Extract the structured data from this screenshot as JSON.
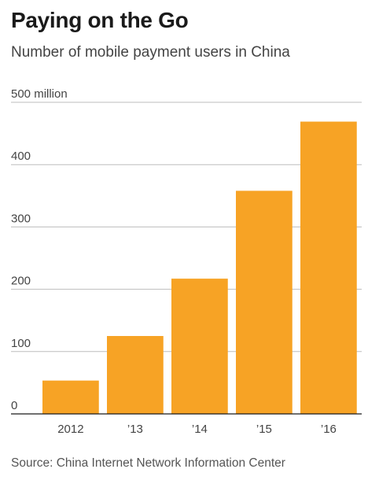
{
  "header": {
    "title": "Paying on the Go",
    "subtitle": "Number of mobile payment users in China"
  },
  "footer": {
    "source": "Source: China Internet Network Information Center"
  },
  "colors": {
    "bar": "#f7a325",
    "grid": "#bdbdbd",
    "baseline": "#1a1a1a"
  },
  "chart_data": {
    "type": "bar",
    "title": "Paying on the Go",
    "subtitle": "Number of mobile payment users in China",
    "categories": [
      "2012",
      "’13",
      "’14",
      "’15",
      "’16"
    ],
    "values": [
      53.5,
      125,
      217,
      358,
      469
    ],
    "ylim": [
      0,
      500
    ],
    "yticks": [
      0,
      100,
      200,
      300,
      400,
      500
    ],
    "ytick_labels": [
      "0",
      "100",
      "200",
      "300",
      "400",
      "500 million"
    ],
    "xlabel": "",
    "ylabel": "",
    "grid": true,
    "legend": "none"
  }
}
